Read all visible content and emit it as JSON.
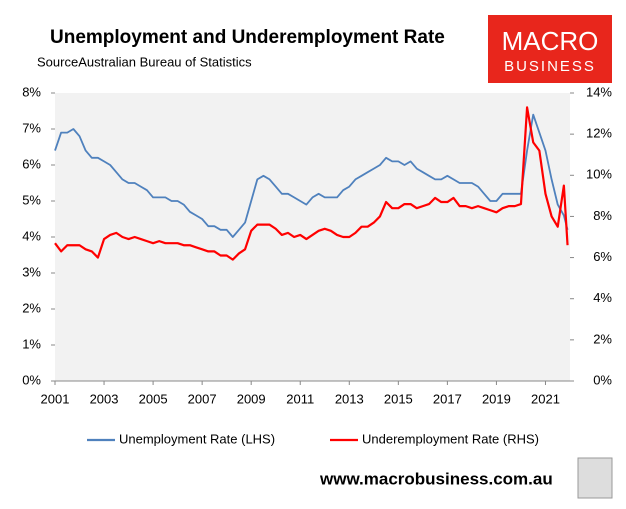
{
  "chart_data": {
    "type": "line",
    "title": "Unemployment and Underemployment Rate",
    "subtitle": "SourceAustralian Bureau of Statistics",
    "x": [
      2001,
      2001.25,
      2001.5,
      2001.75,
      2002,
      2002.25,
      2002.5,
      2002.75,
      2003,
      2003.25,
      2003.5,
      2003.75,
      2004,
      2004.25,
      2004.5,
      2004.75,
      2005,
      2005.25,
      2005.5,
      2005.75,
      2006,
      2006.25,
      2006.5,
      2006.75,
      2007,
      2007.25,
      2007.5,
      2007.75,
      2008,
      2008.25,
      2008.5,
      2008.75,
      2009,
      2009.25,
      2009.5,
      2009.75,
      2010,
      2010.25,
      2010.5,
      2010.75,
      2011,
      2011.25,
      2011.5,
      2011.75,
      2012,
      2012.25,
      2012.5,
      2012.75,
      2013,
      2013.25,
      2013.5,
      2013.75,
      2014,
      2014.25,
      2014.5,
      2014.75,
      2015,
      2015.25,
      2015.5,
      2015.75,
      2016,
      2016.25,
      2016.5,
      2016.75,
      2017,
      2017.25,
      2017.5,
      2017.75,
      2018,
      2018.25,
      2018.5,
      2018.75,
      2019,
      2019.25,
      2019.5,
      2019.75,
      2020,
      2020.25,
      2020.5,
      2020.75,
      2021,
      2021.25,
      2021.5,
      2021.75,
      2021.9
    ],
    "series": [
      {
        "name": "Unemployment Rate (LHS)",
        "color": "#4f81bd",
        "axis": "y",
        "values": [
          6.4,
          6.9,
          6.9,
          7.0,
          6.8,
          6.4,
          6.2,
          6.2,
          6.1,
          6.0,
          5.8,
          5.6,
          5.5,
          5.5,
          5.4,
          5.3,
          5.1,
          5.1,
          5.1,
          5.0,
          5.0,
          4.9,
          4.7,
          4.6,
          4.5,
          4.3,
          4.3,
          4.2,
          4.2,
          4.0,
          4.2,
          4.4,
          5.0,
          5.6,
          5.7,
          5.6,
          5.4,
          5.2,
          5.2,
          5.1,
          5.0,
          4.9,
          5.1,
          5.2,
          5.1,
          5.1,
          5.1,
          5.3,
          5.4,
          5.6,
          5.7,
          5.8,
          5.9,
          6.0,
          6.2,
          6.1,
          6.1,
          6.0,
          6.1,
          5.9,
          5.8,
          5.7,
          5.6,
          5.6,
          5.7,
          5.6,
          5.5,
          5.5,
          5.5,
          5.4,
          5.2,
          5.0,
          5.0,
          5.2,
          5.2,
          5.2,
          5.2,
          6.4,
          7.4,
          6.9,
          6.4,
          5.6,
          4.9,
          4.6,
          4.2
        ]
      },
      {
        "name": "Underemployment Rate (RHS)",
        "color": "#ff0000",
        "axis": "y2",
        "values": [
          6.7,
          6.3,
          6.6,
          6.6,
          6.6,
          6.4,
          6.3,
          6.0,
          6.9,
          7.1,
          7.2,
          7.0,
          6.9,
          7.0,
          6.9,
          6.8,
          6.7,
          6.8,
          6.7,
          6.7,
          6.7,
          6.6,
          6.6,
          6.5,
          6.4,
          6.3,
          6.3,
          6.1,
          6.1,
          5.9,
          6.2,
          6.4,
          7.3,
          7.6,
          7.6,
          7.6,
          7.4,
          7.1,
          7.2,
          7.0,
          7.1,
          6.9,
          7.1,
          7.3,
          7.4,
          7.3,
          7.1,
          7.0,
          7.0,
          7.2,
          7.5,
          7.5,
          7.7,
          8.0,
          8.7,
          8.4,
          8.4,
          8.6,
          8.6,
          8.4,
          8.5,
          8.6,
          8.9,
          8.7,
          8.7,
          8.9,
          8.5,
          8.5,
          8.4,
          8.5,
          8.4,
          8.3,
          8.2,
          8.4,
          8.5,
          8.5,
          8.6,
          13.3,
          11.6,
          11.2,
          9.1,
          8.0,
          7.5,
          9.5,
          6.6
        ]
      }
    ],
    "xlim": [
      2001,
      2022
    ],
    "xticks": [
      2001,
      2003,
      2005,
      2007,
      2009,
      2011,
      2013,
      2015,
      2017,
      2019,
      2021
    ],
    "ylim": [
      0,
      8
    ],
    "yticks": [
      {
        "value": 0,
        "label": "0%"
      },
      {
        "value": 1,
        "label": "1%"
      },
      {
        "value": 2,
        "label": "2%"
      },
      {
        "value": 3,
        "label": "3%"
      },
      {
        "value": 4,
        "label": "4%"
      },
      {
        "value": 5,
        "label": "5%"
      },
      {
        "value": 6,
        "label": "6%"
      },
      {
        "value": 7,
        "label": "7%"
      },
      {
        "value": 8,
        "label": "8%"
      }
    ],
    "y2lim": [
      0,
      14
    ],
    "y2ticks": [
      {
        "value": 0,
        "label": "0%"
      },
      {
        "value": 2,
        "label": "2%"
      },
      {
        "value": 4,
        "label": "4%"
      },
      {
        "value": 6,
        "label": "6%"
      },
      {
        "value": 8,
        "label": "8%"
      },
      {
        "value": 10,
        "label": "10%"
      },
      {
        "value": 12,
        "label": "12%"
      },
      {
        "value": 14,
        "label": "14%"
      }
    ],
    "grid": false
  },
  "logo": {
    "line1": "MACRO",
    "line2": "BUSINESS"
  },
  "footer": "www.macrobusiness.com.au"
}
